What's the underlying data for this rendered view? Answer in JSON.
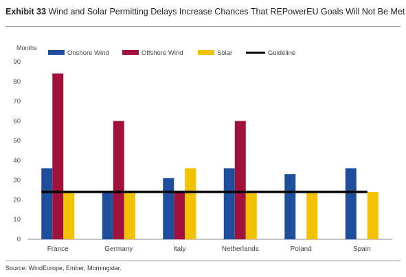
{
  "header": {
    "exhibit": "Exhibit 33",
    "title": "Wind and Solar Permitting Delays Increase Chances That REPowerEU Goals Will Not Be Met"
  },
  "source": "Source: WindEurope, Ember, Morningstar.",
  "chart_data": {
    "type": "bar",
    "ylabel": "Months",
    "ylim": [
      0,
      90
    ],
    "yticks": [
      0,
      10,
      20,
      30,
      40,
      50,
      60,
      70,
      80,
      90
    ],
    "grid": false,
    "legend_position": "top",
    "categories": [
      "France",
      "Germany",
      "Italy",
      "Netherlands",
      "Poland",
      "Spain"
    ],
    "series": [
      {
        "name": "Onshore Wind",
        "color": "#1f4e9c",
        "values": [
          36,
          24,
          31,
          36,
          33,
          36
        ]
      },
      {
        "name": "Offshore Wind",
        "color": "#a0123b",
        "values": [
          84,
          60,
          24,
          60,
          null,
          null
        ]
      },
      {
        "name": "Solar",
        "color": "#f2c200",
        "values": [
          24,
          24,
          36,
          24,
          24,
          24
        ]
      }
    ],
    "guideline": {
      "name": "Guideline",
      "value": 24,
      "color": "#000000"
    }
  }
}
